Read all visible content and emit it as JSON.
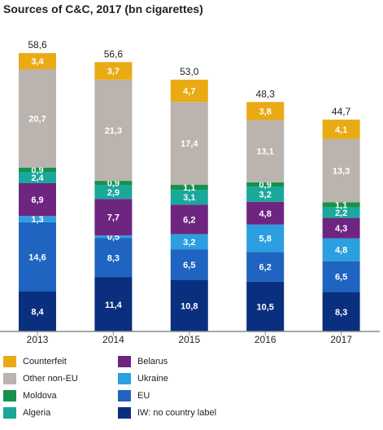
{
  "chart_data": {
    "type": "stacked-bar",
    "title": "Sources of C&C, 2017 (bn cigarettes)",
    "categories": [
      "2013",
      "2014",
      "2015",
      "2016",
      "2017"
    ],
    "totals": [
      "58,6",
      "56,6",
      "53,0",
      "48,3",
      "44,7"
    ],
    "legend_position": "bottom",
    "series": [
      {
        "name": "IW: no country label",
        "color": "#0a2f7e",
        "label_color": "#ffffff",
        "values": [
          8.4,
          11.4,
          10.8,
          10.5,
          8.3
        ],
        "labels": [
          "8,4",
          "11,4",
          "10,8",
          "10,5",
          "8,3"
        ]
      },
      {
        "name": "EU",
        "color": "#1f64c0",
        "label_color": "#ffffff",
        "values": [
          14.6,
          8.3,
          6.5,
          6.2,
          6.5
        ],
        "labels": [
          "14,6",
          "8,3",
          "6,5",
          "6,2",
          "6,5"
        ]
      },
      {
        "name": "Ukraine",
        "color": "#2b9fe0",
        "label_color": "#ffffff",
        "values": [
          1.3,
          0.5,
          3.2,
          5.8,
          4.8
        ],
        "labels": [
          "1,3",
          "0,5",
          "3,2",
          "5,8",
          "4,8"
        ]
      },
      {
        "name": "Belarus",
        "color": "#6e2580",
        "label_color": "#ffffff",
        "values": [
          6.9,
          7.7,
          6.2,
          4.8,
          4.3
        ],
        "labels": [
          "6,9",
          "7,7",
          "6,2",
          "4,8",
          "4,3"
        ]
      },
      {
        "name": "Algeria",
        "color": "#1aa79c",
        "label_color": "#ffffff",
        "values": [
          2.4,
          2.9,
          3.1,
          3.2,
          2.2
        ],
        "labels": [
          "2,4",
          "2,9",
          "3,1",
          "3,2",
          "2,2"
        ]
      },
      {
        "name": "Moldova",
        "color": "#14924d",
        "label_color": "#ffffff",
        "values": [
          0.9,
          0.9,
          1.1,
          0.9,
          1.1
        ],
        "labels": [
          "0,9",
          "0,9",
          "1,1",
          "0,9",
          "1,1"
        ]
      },
      {
        "name": "Other non-EU",
        "color": "#bab3ae",
        "label_color": "#ffffff",
        "values": [
          20.7,
          21.3,
          17.4,
          13.1,
          13.3
        ],
        "labels": [
          "20,7",
          "21,3",
          "17,4",
          "13,1",
          "13,3"
        ]
      },
      {
        "name": "Counterfeit",
        "color": "#eaaa14",
        "label_color": "#ffffff",
        "values": [
          3.4,
          3.7,
          4.7,
          3.8,
          4.1
        ],
        "labels": [
          "3,4",
          "3,7",
          "4,7",
          "3,8",
          "4,1"
        ]
      }
    ],
    "legend_order": [
      [
        "Counterfeit",
        "Belarus"
      ],
      [
        "Other non-EU",
        "Ukraine"
      ],
      [
        "Moldova",
        "EU"
      ],
      [
        "Algeria",
        "IW: no country label"
      ]
    ]
  }
}
